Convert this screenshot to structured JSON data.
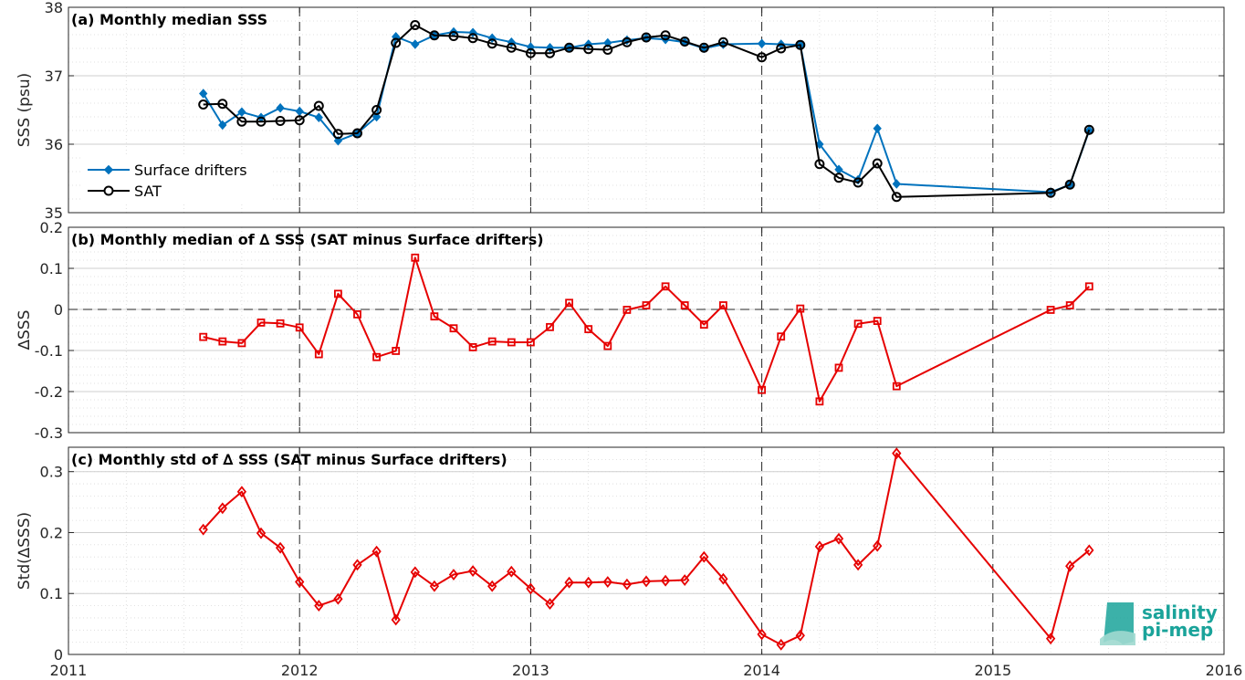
{
  "colors": {
    "drifters": "#0072bd",
    "sat": "#000000",
    "delta": "#e60000",
    "logo": "#1aa39a"
  },
  "logo": {
    "line1": "salinity",
    "line2": "pi-mep"
  },
  "xaxis": {
    "range": [
      2011,
      2016
    ],
    "ticks": [
      "2011",
      "2012",
      "2013",
      "2014",
      "2015",
      "2016"
    ]
  },
  "chart_data": [
    {
      "type": "line",
      "title": "(a) Monthly median SSS",
      "ylabel": "SSS (psu)",
      "ylim": [
        35,
        38
      ],
      "yticks": [
        "35",
        "36",
        "37",
        "38"
      ],
      "grid": true,
      "legend": {
        "position": "left",
        "entries": [
          "Surface drifters",
          "SAT"
        ]
      },
      "series": [
        {
          "name": "Surface drifters",
          "marker": "filled-diamond",
          "color": "#0072bd",
          "x": [
            "2011-08",
            "2011-09",
            "2011-10",
            "2011-11",
            "2011-12",
            "2012-01",
            "2012-02",
            "2012-03",
            "2012-04",
            "2012-05",
            "2012-06",
            "2012-07",
            "2012-08",
            "2012-09",
            "2012-10",
            "2012-11",
            "2012-12",
            "2013-01",
            "2013-02",
            "2013-03",
            "2013-04",
            "2013-05",
            "2013-06",
            "2013-07",
            "2013-08",
            "2013-09",
            "2013-10",
            "2013-11",
            "2014-01",
            "2014-02",
            "2014-03",
            "2014-04",
            "2014-05",
            "2014-06",
            "2014-07",
            "2014-08",
            "2015-04",
            "2015-05",
            "2015-06"
          ],
          "values": [
            36.74,
            36.28,
            36.47,
            36.39,
            36.53,
            36.48,
            36.39,
            36.05,
            36.16,
            36.4,
            37.57,
            37.46,
            37.59,
            37.64,
            37.63,
            37.55,
            37.49,
            37.42,
            37.41,
            37.41,
            37.46,
            37.48,
            37.52,
            37.55,
            37.53,
            37.49,
            37.4,
            37.46,
            37.47,
            37.46,
            37.45,
            36.0,
            35.63,
            35.48,
            36.23,
            35.42,
            35.3,
            35.41,
            36.2
          ]
        },
        {
          "name": "SAT",
          "marker": "open-circle",
          "color": "#000000",
          "x": [
            "2011-08",
            "2011-09",
            "2011-10",
            "2011-11",
            "2011-12",
            "2012-01",
            "2012-02",
            "2012-03",
            "2012-04",
            "2012-05",
            "2012-06",
            "2012-07",
            "2012-08",
            "2012-09",
            "2012-10",
            "2012-11",
            "2012-12",
            "2013-01",
            "2013-02",
            "2013-03",
            "2013-04",
            "2013-05",
            "2013-06",
            "2013-07",
            "2013-08",
            "2013-09",
            "2013-10",
            "2013-11",
            "2014-01",
            "2014-02",
            "2014-03",
            "2014-04",
            "2014-05",
            "2014-06",
            "2014-07",
            "2014-08",
            "2015-04",
            "2015-05",
            "2015-06"
          ],
          "values": [
            36.58,
            36.59,
            36.33,
            36.33,
            36.34,
            36.35,
            36.56,
            36.15,
            36.16,
            36.5,
            37.48,
            37.74,
            37.59,
            37.58,
            37.55,
            37.47,
            37.41,
            37.33,
            37.33,
            37.41,
            37.39,
            37.38,
            37.49,
            37.56,
            37.59,
            37.5,
            37.41,
            37.49,
            37.27,
            37.4,
            37.45,
            35.71,
            35.51,
            35.44,
            35.72,
            35.23,
            35.29,
            35.41,
            36.21
          ]
        }
      ]
    },
    {
      "type": "line",
      "title": "(b) Monthly median of ∆ SSS (SAT minus Surface drifters)",
      "ylabel": "∆SSS",
      "ylim": [
        -0.3,
        0.2
      ],
      "yticks": [
        "-0.3",
        "-0.2",
        "-0.1",
        "0",
        "0.1",
        "0.2"
      ],
      "reference_line": 0,
      "grid": true,
      "series": [
        {
          "marker": "open-square",
          "color": "#e60000",
          "x": [
            "2011-08",
            "2011-09",
            "2011-10",
            "2011-11",
            "2011-12",
            "2012-01",
            "2012-02",
            "2012-03",
            "2012-04",
            "2012-05",
            "2012-06",
            "2012-07",
            "2012-08",
            "2012-09",
            "2012-10",
            "2012-11",
            "2012-12",
            "2013-01",
            "2013-02",
            "2013-03",
            "2013-04",
            "2013-05",
            "2013-06",
            "2013-07",
            "2013-08",
            "2013-09",
            "2013-10",
            "2013-11",
            "2014-01",
            "2014-02",
            "2014-03",
            "2014-04",
            "2014-05",
            "2014-06",
            "2014-07",
            "2014-08",
            "2015-04",
            "2015-05",
            "2015-06"
          ],
          "values": [
            -0.067,
            -0.078,
            -0.082,
            -0.032,
            -0.034,
            -0.044,
            -0.109,
            0.038,
            -0.012,
            -0.116,
            -0.101,
            0.126,
            -0.017,
            -0.046,
            -0.092,
            -0.078,
            -0.08,
            -0.08,
            -0.043,
            0.016,
            -0.048,
            -0.089,
            -0.001,
            0.01,
            0.056,
            0.01,
            -0.037,
            0.01,
            -0.196,
            -0.066,
            0.002,
            -0.224,
            -0.142,
            -0.035,
            -0.028,
            -0.187,
            -0.001,
            0.01,
            0.056
          ]
        }
      ]
    },
    {
      "type": "line",
      "title": "(c) Monthly std of ∆ SSS (SAT minus Surface drifters)",
      "ylabel": "Std(∆SSS)",
      "ylim": [
        0,
        0.34
      ],
      "yticks": [
        "0",
        "0.1",
        "0.2",
        "0.3"
      ],
      "grid": true,
      "series": [
        {
          "marker": "open-diamond",
          "color": "#e60000",
          "x": [
            "2011-08",
            "2011-09",
            "2011-10",
            "2011-11",
            "2011-12",
            "2012-01",
            "2012-02",
            "2012-03",
            "2012-04",
            "2012-05",
            "2012-06",
            "2012-07",
            "2012-08",
            "2012-09",
            "2012-10",
            "2012-11",
            "2012-12",
            "2013-01",
            "2013-02",
            "2013-03",
            "2013-04",
            "2013-05",
            "2013-06",
            "2013-07",
            "2013-08",
            "2013-09",
            "2013-10",
            "2013-11",
            "2014-01",
            "2014-02",
            "2014-03",
            "2014-04",
            "2014-05",
            "2014-06",
            "2014-07",
            "2014-08",
            "2015-04",
            "2015-05",
            "2015-06"
          ],
          "values": [
            0.205,
            0.24,
            0.267,
            0.199,
            0.175,
            0.119,
            0.08,
            0.091,
            0.147,
            0.169,
            0.057,
            0.135,
            0.112,
            0.131,
            0.137,
            0.112,
            0.136,
            0.108,
            0.083,
            0.118,
            0.118,
            0.119,
            0.115,
            0.12,
            0.121,
            0.122,
            0.16,
            0.124,
            0.033,
            0.016,
            0.031,
            0.177,
            0.19,
            0.147,
            0.178,
            0.33,
            0.026,
            0.145,
            0.171
          ]
        }
      ]
    }
  ]
}
